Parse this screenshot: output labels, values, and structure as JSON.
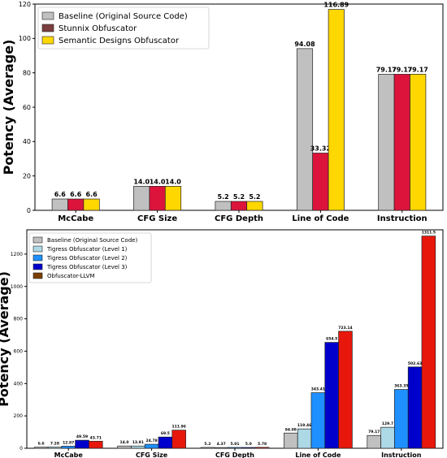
{
  "chart_data": [
    {
      "type": "bar",
      "ylabel": "Potency (Average)",
      "ylim": [
        0,
        120
      ],
      "yticks": [
        0,
        20,
        40,
        60,
        80,
        100,
        120
      ],
      "categories": [
        "McCabe",
        "CFG Size",
        "CFG Depth",
        "Line of Code",
        "Instruction"
      ],
      "legend_position": "top-left",
      "grid": false,
      "series": [
        {
          "name": "Baseline (Original Source Code)",
          "color": "#c0c0c0",
          "label_color": "#000000",
          "values": [
            6.6,
            14.0,
            5.2,
            94.08,
            79.17
          ],
          "labels": [
            "6.6",
            "14.0",
            "5.2",
            "94.08",
            "79.17"
          ]
        },
        {
          "name": "Stunnix Obfuscator",
          "color": "#dc143c",
          "label_color": "#8b0000",
          "values": [
            6.6,
            14.0,
            5.2,
            33.32,
            79.17
          ],
          "labels": [
            "6.6",
            "14.0",
            "5.2",
            "33.32",
            "79.17"
          ]
        },
        {
          "name": "Semantic Designs Obfuscator",
          "color": "#ffd700",
          "label_color": "#b8860b",
          "values": [
            6.6,
            14.0,
            5.2,
            116.89,
            79.17
          ],
          "labels": [
            "6.6",
            "14.0",
            "5.2",
            "116.89",
            "79.17"
          ]
        }
      ],
      "legend_colors": [
        "#c0c0c0",
        "#7b3f3f",
        "#ffd700"
      ]
    },
    {
      "type": "bar",
      "ylabel": "Potency (Average)",
      "ylim": [
        0,
        1350
      ],
      "yticks": [
        0,
        200,
        400,
        600,
        800,
        1000,
        1200
      ],
      "categories": [
        "McCabe",
        "CFG Size",
        "CFG Depth",
        "Line of Code",
        "Instruction"
      ],
      "legend_position": "top-left",
      "grid": false,
      "series": [
        {
          "name": "Baseline (Original Source Code)",
          "color": "#c0c0c0",
          "label_color": "#000000",
          "values": [
            6.6,
            14.0,
            5.2,
            94.08,
            79.17
          ],
          "labels": [
            "6.6",
            "14.0",
            "5.2",
            "94.08",
            "79.17"
          ]
        },
        {
          "name": "Tigress Obfuscator (Level 1)",
          "color": "#add8e6",
          "label_color": "#4682b4",
          "values": [
            7.28,
            13.91,
            4.37,
            119.46,
            129.7
          ],
          "labels": [
            "7.28",
            "13.91",
            "4.37",
            "119.46",
            "129.7"
          ]
        },
        {
          "name": "Tigress Obfuscator (Level 2)",
          "color": "#1e90ff",
          "label_color": "#1e90ff",
          "values": [
            12.87,
            24.78,
            5.01,
            343.41,
            363.35
          ],
          "labels": [
            "12.87",
            "24.78",
            "5.01",
            "343.41",
            "363.35"
          ]
        },
        {
          "name": "Tigress Obfuscator (Level 3)",
          "color": "#0000cd",
          "label_color": "#00008b",
          "values": [
            49.59,
            69.5,
            5.0,
            654.5,
            502.63
          ],
          "labels": [
            "49.59",
            "69.5",
            "5.0",
            "654.5",
            "502.63"
          ]
        },
        {
          "name": "Obfuscator-LLVM",
          "color": "#e8170c",
          "label_color": "#8b0000",
          "values": [
            43.71,
            111.96,
            5.78,
            723.14,
            1311.5
          ],
          "labels": [
            "43.71",
            "111.96",
            "5.78",
            "723.14",
            "1311.5"
          ]
        }
      ],
      "legend_colors": [
        "#c0c0c0",
        "#add8e6",
        "#1e90ff",
        "#0000cd",
        "#7b3f00"
      ]
    }
  ]
}
